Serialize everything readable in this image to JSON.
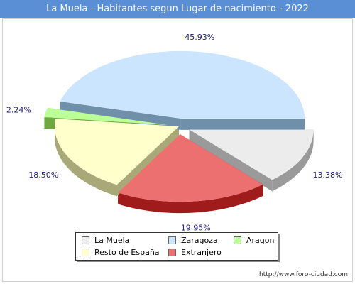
{
  "title": "La Muela - Habitantes segun Lugar de nacimiento - 2022",
  "footer_url": "http://www.foro-ciudad.com",
  "chart_data": {
    "type": "pie",
    "title": "La Muela - Habitantes segun Lugar de nacimiento - 2022",
    "slices": [
      {
        "name": "La Muela",
        "value": 13.38,
        "label": "13.38%",
        "color": "#ececec",
        "side": "#9a9a9a",
        "exploded": true
      },
      {
        "name": "Extranjero",
        "value": 19.95,
        "label": "19.95%",
        "color": "#ec7070",
        "side": "#a01c1c",
        "exploded": true
      },
      {
        "name": "Resto de España",
        "value": 18.5,
        "label": "18.50%",
        "color": "#ffffcc",
        "side": "#a8a878",
        "exploded": false
      },
      {
        "name": "Aragon",
        "value": 2.24,
        "label": "2.24%",
        "color": "#bbff99",
        "side": "#6fa83f",
        "exploded": true
      },
      {
        "name": "Zaragoza",
        "value": 45.93,
        "label": "45.93%",
        "color": "#cce5ff",
        "side": "#7090aa",
        "exploded": true
      }
    ],
    "legend": [
      {
        "name": "La Muela",
        "color": "#ececec"
      },
      {
        "name": "Zaragoza",
        "color": "#cce5ff"
      },
      {
        "name": "Aragon",
        "color": "#bbff99"
      },
      {
        "name": "Resto de España",
        "color": "#ffffcc"
      },
      {
        "name": "Extranjero",
        "color": "#ec7070"
      }
    ],
    "legend_position": "bottom"
  }
}
